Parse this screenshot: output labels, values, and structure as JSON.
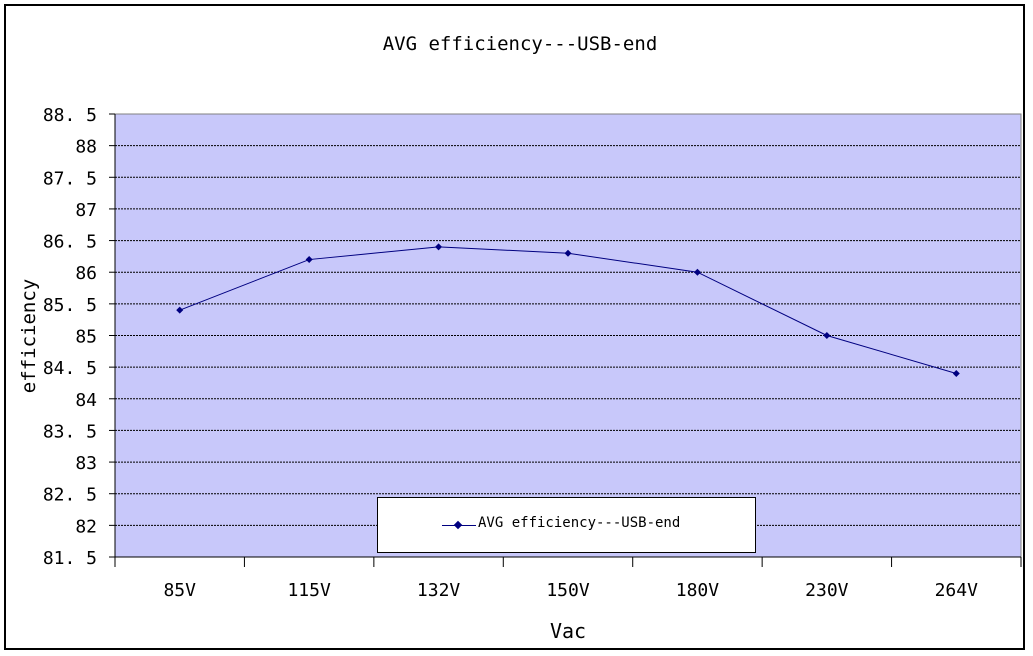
{
  "chart_data": {
    "type": "line",
    "title": "AVG efficiency---USB-end",
    "xlabel": "Vac",
    "ylabel": "efficiency",
    "categories": [
      "85V",
      "115V",
      "132V",
      "150V",
      "180V",
      "230V",
      "264V"
    ],
    "series": [
      {
        "name": "AVG efficiency---USB-end",
        "values": [
          85.4,
          86.2,
          86.4,
          86.3,
          86.0,
          85.0,
          84.4
        ]
      }
    ],
    "ylim": [
      81.5,
      88.5
    ],
    "yticks": [
      "81. 5",
      "82",
      "82. 5",
      "83",
      "83. 5",
      "84",
      "84. 5",
      "85",
      "85. 5",
      "86",
      "86. 5",
      "87",
      "87. 5",
      "88",
      "88. 5"
    ],
    "grid": true,
    "legend": "bottom-center",
    "colors": {
      "plot_bg": "#c8c8fa",
      "series": "#000080"
    }
  }
}
